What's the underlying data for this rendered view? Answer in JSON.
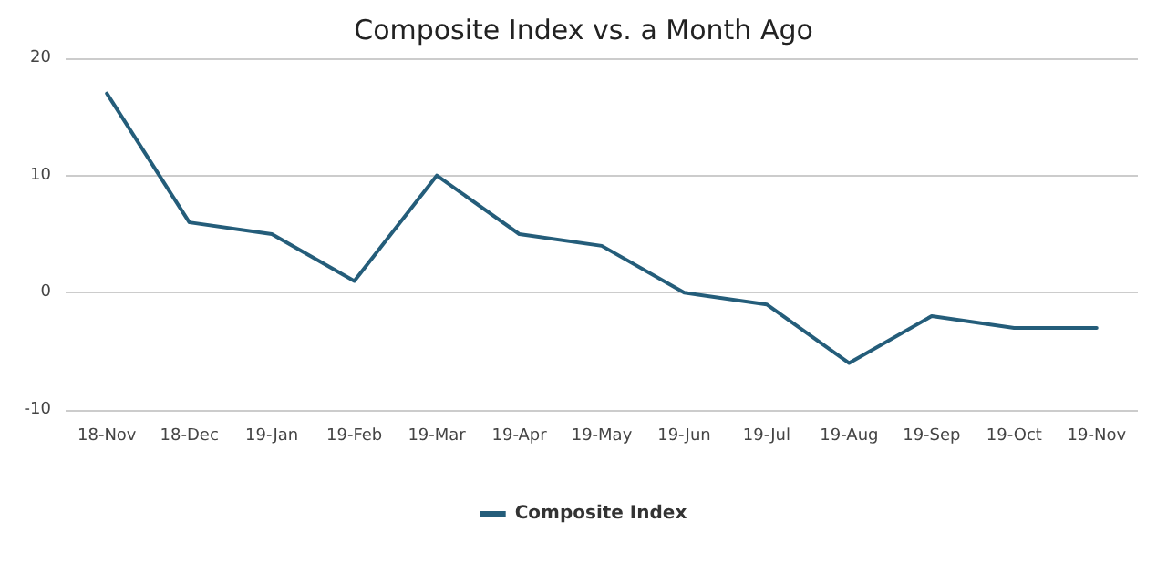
{
  "chart_data": {
    "type": "line",
    "title": "Composite Index vs. a Month Ago",
    "categories": [
      "18-Nov",
      "18-Dec",
      "19-Jan",
      "19-Feb",
      "19-Mar",
      "19-Apr",
      "19-May",
      "19-Jun",
      "19-Jul",
      "19-Aug",
      "19-Sep",
      "19-Oct",
      "19-Nov"
    ],
    "series": [
      {
        "name": "Composite Index",
        "color": "#245d7a",
        "values": [
          17,
          6,
          5,
          1,
          10,
          5,
          4,
          0,
          -1,
          -6,
          -2,
          -3,
          -3
        ]
      }
    ],
    "ylim": [
      -10,
      20
    ],
    "yticks": [
      -10,
      0,
      10,
      20
    ],
    "grid": "y",
    "legend": "bottom",
    "marker": "none",
    "line_style": "solid"
  }
}
